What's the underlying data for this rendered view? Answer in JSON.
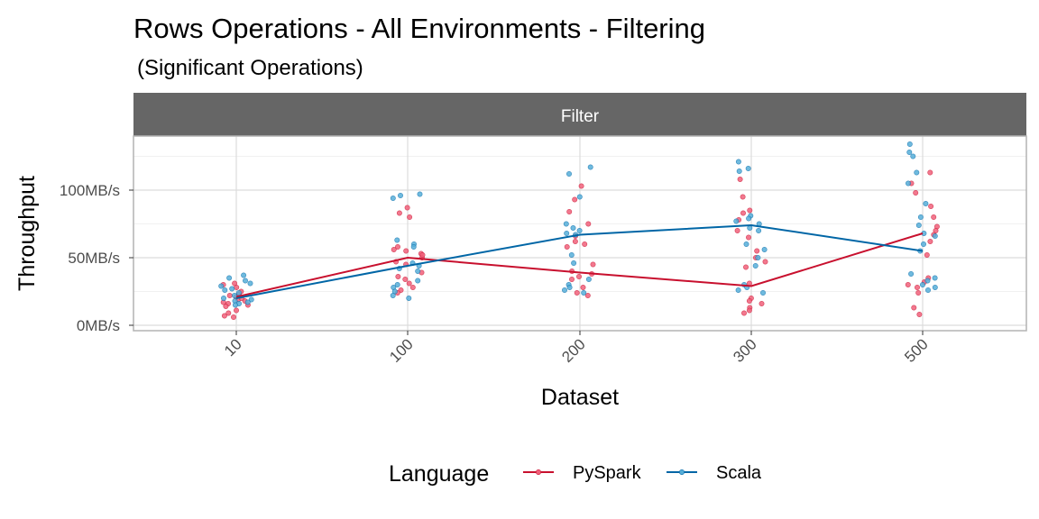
{
  "chart_data": {
    "type": "scatter",
    "title": "Rows Operations - All Environments - Filtering",
    "subtitle": "(Significant Operations)",
    "facet": "Filter",
    "xlabel": "Dataset",
    "ylabel": "Throughput",
    "categories": [
      "10",
      "100",
      "200",
      "300",
      "500"
    ],
    "y_ticks": [
      {
        "value": 0,
        "label": "0MB/s"
      },
      {
        "value": 50,
        "label": "50MB/s"
      },
      {
        "value": 100,
        "label": "100MB/s"
      }
    ],
    "ylim": [
      -4,
      140
    ],
    "grid": true,
    "legend": {
      "title": "Language",
      "position": "bottom"
    },
    "series": [
      {
        "name": "PySpark",
        "color": "#c8102e",
        "point_color": "#f0607a",
        "mean": [
          21,
          50,
          39,
          29,
          68
        ],
        "points": [
          [
            21,
            19,
            7,
            9,
            31,
            28,
            17,
            15,
            23,
            6,
            22,
            18,
            25,
            30,
            11,
            16,
            20,
            14
          ],
          [
            80,
            87,
            58,
            56,
            53,
            50,
            47,
            45,
            39,
            36,
            34,
            31,
            28,
            26,
            24,
            52,
            55,
            83
          ],
          [
            103,
            93,
            84,
            75,
            66,
            62,
            58,
            45,
            40,
            38,
            36,
            34,
            28,
            24,
            22,
            60
          ],
          [
            108,
            95,
            85,
            78,
            70,
            65,
            55,
            50,
            47,
            43,
            31,
            20,
            18,
            16,
            13,
            11,
            9,
            83
          ],
          [
            113,
            105,
            98,
            88,
            80,
            73,
            70,
            67,
            62,
            52,
            32,
            30,
            28,
            24,
            13,
            8,
            35
          ]
        ]
      },
      {
        "name": "Scala",
        "color": "#0066a6",
        "point_color": "#56aed8",
        "mean": [
          20,
          44,
          67,
          74,
          55
        ],
        "points": [
          [
            37,
            35,
            31,
            29,
            27,
            24,
            22,
            20,
            19,
            18,
            17,
            16,
            15,
            26,
            33
          ],
          [
            97,
            96,
            94,
            63,
            60,
            58,
            46,
            44,
            42,
            33,
            30,
            28,
            25,
            22,
            20,
            40
          ],
          [
            117,
            112,
            95,
            75,
            72,
            70,
            68,
            67,
            52,
            46,
            34,
            30,
            28,
            26,
            24
          ],
          [
            121,
            116,
            114,
            81,
            79,
            77,
            75,
            72,
            70,
            60,
            56,
            50,
            44,
            30,
            28,
            26,
            24
          ],
          [
            134,
            128,
            125,
            113,
            105,
            90,
            80,
            74,
            68,
            66,
            60,
            55,
            38,
            35,
            33,
            30,
            28,
            26
          ]
        ]
      }
    ]
  }
}
